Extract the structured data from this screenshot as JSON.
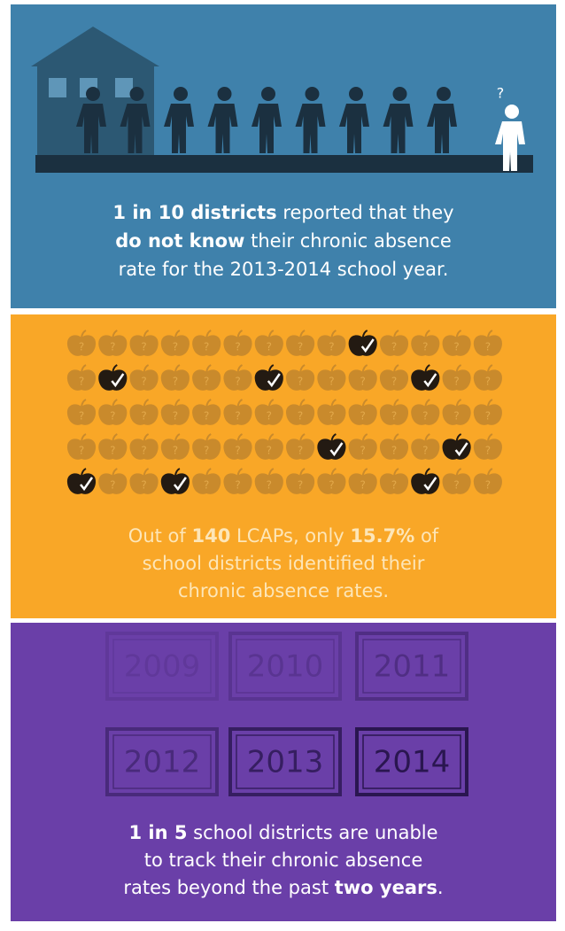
{
  "panels": [
    {
      "icon_label": "?",
      "lines": [
        [
          {
            "text": "1 in 10 districts",
            "bold": true
          },
          {
            "text": " reported that they",
            "bold": false
          }
        ],
        [
          {
            "text": "do not know",
            "bold": true
          },
          {
            "text": " their chronic absence",
            "bold": false
          }
        ],
        [
          {
            "text": "rate for the 2013-2014 school year.",
            "bold": false
          }
        ]
      ]
    },
    {
      "icon_label": "?",
      "lines": [
        [
          {
            "text": "Out of ",
            "bold": false
          },
          {
            "text": "140",
            "bold": true
          },
          {
            "text": " LCAPs, only ",
            "bold": false
          },
          {
            "text": "15.7%",
            "bold": true
          },
          {
            "text": " of",
            "bold": false
          }
        ],
        [
          {
            "text": "school districts identified their",
            "bold": false
          }
        ],
        [
          {
            "text": "chronic absence rates.",
            "bold": false
          }
        ]
      ]
    },
    {
      "years": [
        "2009",
        "2010",
        "2011",
        "2012",
        "2013",
        "2014"
      ],
      "lines": [
        [
          {
            "text": "1 in 5",
            "bold": true
          },
          {
            "text": " school districts are unable",
            "bold": false
          }
        ],
        [
          {
            "text": "to track their chronic absence",
            "bold": false
          }
        ],
        [
          {
            "text": "rates beyond the past ",
            "bold": false
          },
          {
            "text": "two years",
            "bold": true
          },
          {
            "text": ".",
            "bold": false
          }
        ]
      ]
    }
  ]
}
